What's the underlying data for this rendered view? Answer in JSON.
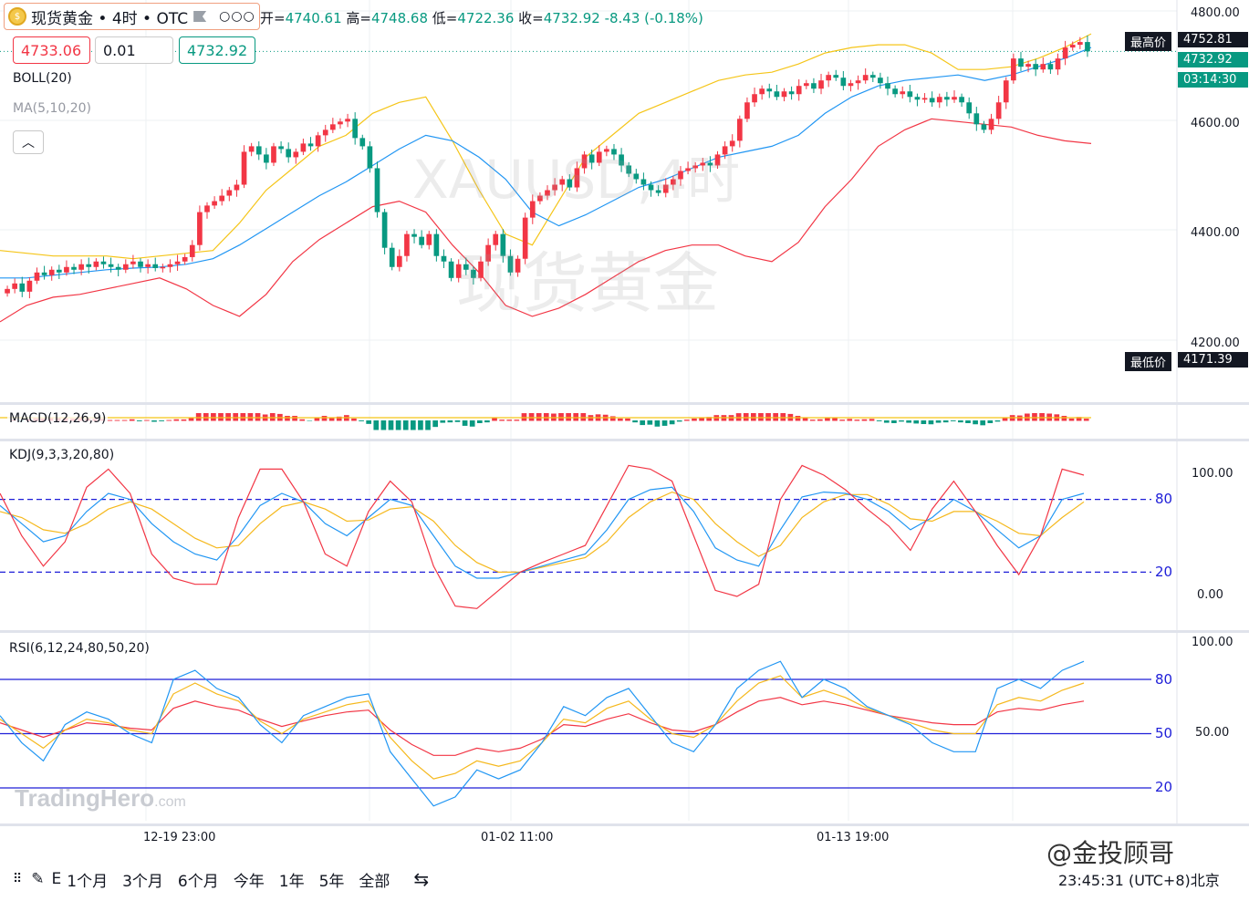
{
  "header": {
    "symbol_title": "现货黄金 • 4时 • OTC",
    "menu_icon": "ellipsis-icon",
    "coin_icon": "gold-coin-icon",
    "flag_icon": "flag-icon",
    "ohlc": {
      "open_label": "开=",
      "open": "4740.61",
      "high_label": "高=",
      "high": "4748.68",
      "low_label": "低=",
      "low": "4722.36",
      "close_label": "收=",
      "close": "4732.92",
      "change": "-8.43 (-0.18%)"
    },
    "sell_price": "4733.06",
    "lot_size": "0.01",
    "buy_price": "4732.92"
  },
  "indicators": {
    "boll": "BOLL(20)",
    "ma": "MA(5,10,20)",
    "macd": "MACD(12,26,9)",
    "kdj": "KDJ(9,3,3,20,80)",
    "rsi": "RSI(6,12,24,80,50,20)"
  },
  "price_axis": {
    "ticks": [
      "4800.00",
      "4600.00",
      "4400.00",
      "4200.00"
    ],
    "high_label": "最高价",
    "high_value": "4752.81",
    "low_label": "最低价",
    "low_value": "4171.39",
    "last_price": "4732.92",
    "countdown": "03:14:30"
  },
  "kdj_axis": {
    "ticks": [
      "100.00",
      "0.00"
    ],
    "band_labels": [
      "80",
      "20"
    ]
  },
  "rsi_axis": {
    "ticks": [
      "100.00",
      "50.00"
    ],
    "band_labels": [
      "80",
      "50",
      "20"
    ]
  },
  "time_axis": {
    "ticks": [
      "12-19 23:00",
      "01-02 11:00",
      "01-13 19:00"
    ]
  },
  "watermark": {
    "line1": "XAUUSD,4时",
    "line2": "现货黄金"
  },
  "branding": {
    "logo": "TradingHero",
    "logo_suffix": ".com",
    "credit": "@金投顾哥"
  },
  "toolbar": {
    "ranges": [
      "1个月",
      "3个月",
      "6个月",
      "今年",
      "1年",
      "5年",
      "全部"
    ],
    "clock": "23:45:31 (UTC+8)北京",
    "partial_label": "E"
  },
  "colors": {
    "up": "#f23645",
    "down": "#089981",
    "boll_mid": "#2196f3",
    "boll_up": "#f5c518",
    "boll_low": "#f23645",
    "band": "#1e1ed8"
  },
  "chart_data": {
    "type": "candlestick",
    "timeframe": "4h",
    "ylim": [
      4171.39,
      4800
    ],
    "x_ticks": [
      "12-19 23:00",
      "01-02 11:00",
      "01-13 19:00"
    ],
    "closes": [
      4300,
      4310,
      4295,
      4315,
      4330,
      4325,
      4335,
      4330,
      4340,
      4335,
      4345,
      4340,
      4350,
      4345,
      4340,
      4335,
      4345,
      4350,
      4340,
      4345,
      4338,
      4340,
      4345,
      4350,
      4358,
      4380,
      4440,
      4452,
      4460,
      4470,
      4480,
      4490,
      4550,
      4560,
      4545,
      4530,
      4560,
      4555,
      4540,
      4550,
      4565,
      4560,
      4580,
      4590,
      4600,
      4605,
      4610,
      4575,
      4560,
      4520,
      4440,
      4375,
      4340,
      4360,
      4400,
      4395,
      4380,
      4400,
      4360,
      4350,
      4320,
      4345,
      4335,
      4320,
      4350,
      4380,
      4400,
      4360,
      4330,
      4355,
      4430,
      4460,
      4470,
      4480,
      4490,
      4500,
      4485,
      4520,
      4545,
      4530,
      4550,
      4555,
      4545,
      4525,
      4510,
      4500,
      4490,
      4480,
      4475,
      4490,
      4500,
      4515,
      4520,
      4525,
      4530,
      4525,
      4545,
      4560,
      4570,
      4610,
      4640,
      4655,
      4665,
      4660,
      4650,
      4660,
      4655,
      4670,
      4675,
      4665,
      4680,
      4690,
      4685,
      4670,
      4675,
      4680,
      4690,
      4685,
      4675,
      4665,
      4655,
      4660,
      4650,
      4645,
      4648,
      4640,
      4650,
      4645,
      4650,
      4640,
      4620,
      4600,
      4590,
      4610,
      4640,
      4680,
      4720,
      4705,
      4710,
      4700,
      4710,
      4700,
      4720,
      4740,
      4745,
      4750,
      4733
    ],
    "boll": {
      "upper": [
        4370,
        4365,
        4360,
        4360,
        4360,
        4355,
        4360,
        4365,
        4370,
        4420,
        4480,
        4520,
        4560,
        4580,
        4620,
        4640,
        4650,
        4570,
        4480,
        4400,
        4380,
        4460,
        4540,
        4580,
        4620,
        4640,
        4660,
        4680,
        4690,
        4695,
        4710,
        4730,
        4740,
        4745,
        4745,
        4730,
        4700,
        4700,
        4705,
        4720,
        4740,
        4765
      ],
      "middle": [
        4320,
        4320,
        4325,
        4330,
        4335,
        4338,
        4340,
        4345,
        4355,
        4380,
        4410,
        4440,
        4470,
        4495,
        4525,
        4555,
        4580,
        4570,
        4540,
        4500,
        4440,
        4415,
        4435,
        4460,
        4485,
        4500,
        4520,
        4540,
        4550,
        4560,
        4580,
        4620,
        4650,
        4670,
        4680,
        4685,
        4690,
        4680,
        4690,
        4705,
        4720,
        4740
      ],
      "lower": [
        4240,
        4270,
        4285,
        4290,
        4300,
        4310,
        4320,
        4300,
        4270,
        4250,
        4290,
        4350,
        4390,
        4420,
        4450,
        4460,
        4440,
        4380,
        4330,
        4270,
        4250,
        4265,
        4290,
        4320,
        4350,
        4370,
        4380,
        4380,
        4360,
        4350,
        4385,
        4450,
        4500,
        4560,
        4590,
        4610,
        4605,
        4600,
        4595,
        4580,
        4570,
        4565
      ]
    },
    "kdj": {
      "k": [
        75,
        60,
        45,
        50,
        70,
        85,
        80,
        60,
        45,
        35,
        30,
        50,
        75,
        85,
        78,
        60,
        50,
        65,
        80,
        75,
        50,
        25,
        15,
        15,
        20,
        25,
        30,
        35,
        55,
        80,
        88,
        90,
        70,
        40,
        30,
        25,
        55,
        82,
        86,
        85,
        80,
        70,
        55,
        65,
        80,
        70,
        55,
        40,
        50,
        80,
        85
      ],
      "d": [
        70,
        65,
        55,
        52,
        60,
        72,
        78,
        72,
        60,
        48,
        40,
        42,
        60,
        74,
        78,
        72,
        62,
        63,
        72,
        74,
        62,
        42,
        28,
        20,
        20,
        24,
        28,
        32,
        45,
        65,
        78,
        86,
        80,
        60,
        45,
        33,
        42,
        65,
        78,
        84,
        84,
        76,
        64,
        62,
        70,
        70,
        62,
        52,
        50,
        65,
        78
      ],
      "j": [
        85,
        50,
        25,
        45,
        90,
        105,
        85,
        35,
        15,
        10,
        10,
        65,
        105,
        105,
        78,
        35,
        25,
        70,
        95,
        78,
        25,
        -8,
        -10,
        5,
        20,
        28,
        35,
        42,
        75,
        108,
        105,
        95,
        50,
        5,
        0,
        10,
        80,
        108,
        100,
        88,
        72,
        58,
        38,
        72,
        95,
        70,
        42,
        18,
        50,
        105,
        100
      ]
    },
    "rsi": {
      "rsi6": [
        60,
        45,
        35,
        55,
        62,
        58,
        50,
        45,
        80,
        85,
        75,
        70,
        55,
        45,
        60,
        65,
        70,
        72,
        40,
        25,
        10,
        15,
        30,
        25,
        30,
        45,
        65,
        60,
        70,
        75,
        60,
        45,
        40,
        55,
        75,
        85,
        90,
        70,
        80,
        75,
        65,
        60,
        55,
        45,
        40,
        40,
        75,
        80,
        75,
        85,
        90
      ],
      "rsi12": [
        58,
        50,
        42,
        52,
        58,
        56,
        52,
        50,
        72,
        78,
        72,
        68,
        57,
        50,
        58,
        62,
        66,
        68,
        48,
        35,
        25,
        28,
        35,
        32,
        35,
        45,
        58,
        56,
        64,
        68,
        58,
        50,
        48,
        55,
        68,
        78,
        82,
        70,
        74,
        70,
        64,
        60,
        56,
        52,
        50,
        50,
        66,
        70,
        68,
        74,
        78
      ],
      "rsi24": [
        56,
        52,
        48,
        52,
        56,
        55,
        53,
        52,
        64,
        68,
        65,
        63,
        58,
        54,
        57,
        60,
        62,
        63,
        52,
        44,
        38,
        38,
        42,
        40,
        42,
        47,
        55,
        54,
        58,
        61,
        56,
        52,
        51,
        55,
        62,
        68,
        70,
        66,
        68,
        66,
        63,
        60,
        58,
        56,
        55,
        55,
        62,
        64,
        63,
        66,
        68
      ]
    }
  }
}
